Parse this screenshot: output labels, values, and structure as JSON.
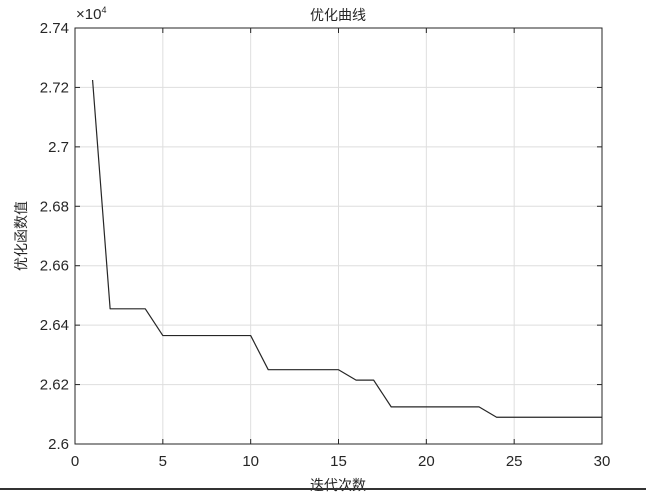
{
  "chart_data": {
    "type": "line",
    "title": "优化曲线",
    "xlabel": "迭代次数",
    "ylabel": "优化函数值",
    "y_exponent_label": "×10",
    "y_exponent_power": "4",
    "xlim": [
      0,
      30
    ],
    "ylim": [
      2.6,
      2.74
    ],
    "xticks": [
      0,
      5,
      10,
      15,
      20,
      25,
      30
    ],
    "xtick_labels": [
      "0",
      "5",
      "10",
      "15",
      "20",
      "25",
      "30"
    ],
    "yticks": [
      2.6,
      2.62,
      2.64,
      2.66,
      2.68,
      2.7,
      2.72,
      2.74
    ],
    "ytick_labels": [
      "2.6",
      "2.62",
      "2.64",
      "2.66",
      "2.68",
      "2.7",
      "2.72",
      "2.74"
    ],
    "grid": true,
    "series": [
      {
        "x": [
          1,
          2,
          3,
          4,
          5,
          6,
          7,
          8,
          9,
          10,
          11,
          12,
          13,
          14,
          15,
          16,
          17,
          18,
          19,
          20,
          21,
          22,
          23,
          24,
          25,
          26,
          27,
          28,
          29,
          30
        ],
        "y": [
          2.7225,
          2.6455,
          2.6455,
          2.6455,
          2.6365,
          2.6365,
          2.6365,
          2.6365,
          2.6365,
          2.6365,
          2.625,
          2.625,
          2.625,
          2.625,
          2.625,
          2.6215,
          2.6215,
          2.6125,
          2.6125,
          2.6125,
          2.6125,
          2.6125,
          2.6125,
          2.609,
          2.609,
          2.609,
          2.609,
          2.609,
          2.609,
          2.609
        ]
      }
    ]
  }
}
